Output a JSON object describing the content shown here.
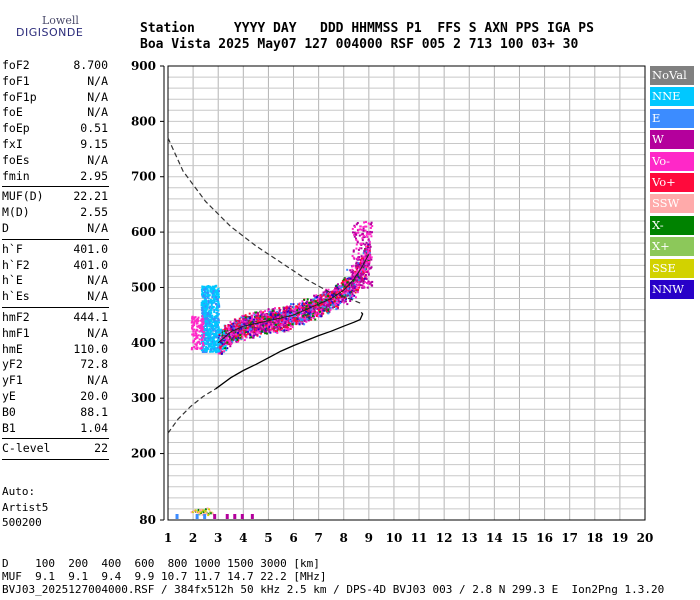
{
  "logo": {
    "line1": "Lowell",
    "line2": "DIGISONDE"
  },
  "header": {
    "line1": "Station     YYYY DAY   DDD HHMMSS P1  FFS S AXN PPS IGA PS",
    "line2": "Boa Vista 2025 May07 127 004000 RSF 005 2 713 100 03+ 30"
  },
  "params": {
    "group1": [
      {
        "label": "foF2",
        "value": "8.700"
      },
      {
        "label": "foF1",
        "value": "N/A"
      },
      {
        "label": "foF1p",
        "value": "N/A"
      },
      {
        "label": "foE",
        "value": "N/A"
      },
      {
        "label": "foEp",
        "value": "0.51"
      },
      {
        "label": "fxI",
        "value": "9.15"
      },
      {
        "label": "foEs",
        "value": "N/A"
      },
      {
        "label": "fmin",
        "value": "2.95"
      }
    ],
    "group2": [
      {
        "label": "MUF(D)",
        "value": "22.21"
      },
      {
        "label": "M(D)",
        "value": "2.55"
      },
      {
        "label": "D",
        "value": "N/A"
      }
    ],
    "group3": [
      {
        "label": "h`F",
        "value": "401.0"
      },
      {
        "label": "h`F2",
        "value": "401.0"
      },
      {
        "label": "h`E",
        "value": "N/A"
      },
      {
        "label": "h`Es",
        "value": "N/A"
      }
    ],
    "group4": [
      {
        "label": "hmF2",
        "value": "444.1"
      },
      {
        "label": "hmF1",
        "value": "N/A"
      },
      {
        "label": "hmE",
        "value": "110.0"
      },
      {
        "label": "yF2",
        "value": "72.8"
      },
      {
        "label": "yF1",
        "value": "N/A"
      },
      {
        "label": "yE",
        "value": "20.0"
      },
      {
        "label": "B0",
        "value": "88.1"
      },
      {
        "label": "B1",
        "value": "1.04"
      }
    ],
    "group5": [
      {
        "label": "C-level",
        "value": "22"
      }
    ]
  },
  "auto": {
    "line1": "Auto:",
    "line2": "Artist5",
    "line3": "500200"
  },
  "legend": [
    {
      "label": "NoVal",
      "color": "#808080"
    },
    {
      "label": "NNE",
      "color": "#00c8ff"
    },
    {
      "label": "E",
      "color": "#3c8cff"
    },
    {
      "label": "W",
      "color": "#b4009c"
    },
    {
      "label": "Vo-",
      "color": "#ff28c8"
    },
    {
      "label": "Vo+",
      "color": "#ff0a3c"
    },
    {
      "label": "SSW",
      "color": "#ffaaaa"
    },
    {
      "label": "X-",
      "color": "#008200"
    },
    {
      "label": "X+",
      "color": "#8cc85a"
    },
    {
      "label": "SSE",
      "color": "#d2d200"
    },
    {
      "label": "NNW",
      "color": "#2800c8"
    }
  ],
  "footer": {
    "line1": "D    100  200  400  600  800 1000 1500 3000 [km]",
    "line2": "MUF  9.1  9.1  9.4  9.9 10.7 11.7 14.7 22.2 [MHz]",
    "line3": "BVJ03_2025127004000.RSF / 384fx512h 50 kHz 2.5 km / DPS-4D BVJ03 003 / 2.8 N 299.3 E  Ion2Png 1.3.20"
  },
  "chart_data": {
    "type": "scatter",
    "xlim": [
      1,
      20
    ],
    "ylim": [
      80,
      900
    ],
    "x_ticks": [
      1,
      2,
      3,
      4,
      5,
      6,
      7,
      8,
      9,
      10,
      11,
      12,
      13,
      14,
      15,
      16,
      17,
      18,
      19,
      20
    ],
    "y_ticks": [
      80,
      200,
      300,
      400,
      500,
      600,
      700,
      800,
      900
    ],
    "grid": true,
    "dashed_profile": {
      "x": [
        1.0,
        1.6,
        2.5,
        3.5,
        4.5,
        5.5,
        6.5,
        7.5,
        8.2,
        8.75
      ],
      "y": [
        770,
        710,
        655,
        610,
        575,
        545,
        515,
        490,
        480,
        470
      ]
    },
    "lower_dashed": {
      "x": [
        1.0,
        1.4,
        1.9,
        2.4,
        2.9
      ],
      "y": [
        237,
        262,
        285,
        303,
        317
      ]
    },
    "true_height_profile": {
      "x": [
        2.9,
        3.5,
        4.0,
        4.5,
        5.0,
        5.5,
        6.0,
        6.5,
        7.0,
        7.5,
        8.0,
        8.4,
        8.65,
        8.75,
        8.7
      ],
      "y": [
        317,
        337,
        350,
        361,
        373,
        385,
        395,
        404,
        413,
        421,
        430,
        437,
        442,
        452,
        455
      ]
    },
    "trace_median": {
      "x": [
        3.0,
        3.5,
        4.0,
        4.5,
        5.0,
        5.5,
        6.0,
        6.5,
        7.0,
        7.5,
        8.0,
        8.4,
        8.7,
        9.0
      ],
      "y": [
        400,
        420,
        430,
        435,
        440,
        445,
        450,
        460,
        470,
        480,
        495,
        515,
        535,
        560
      ]
    },
    "es_trace": {
      "x": [
        1.9,
        2.0,
        2.1,
        2.2,
        2.3,
        2.4,
        2.5
      ],
      "y": [
        95,
        98,
        94,
        97,
        100,
        95,
        93
      ]
    }
  }
}
